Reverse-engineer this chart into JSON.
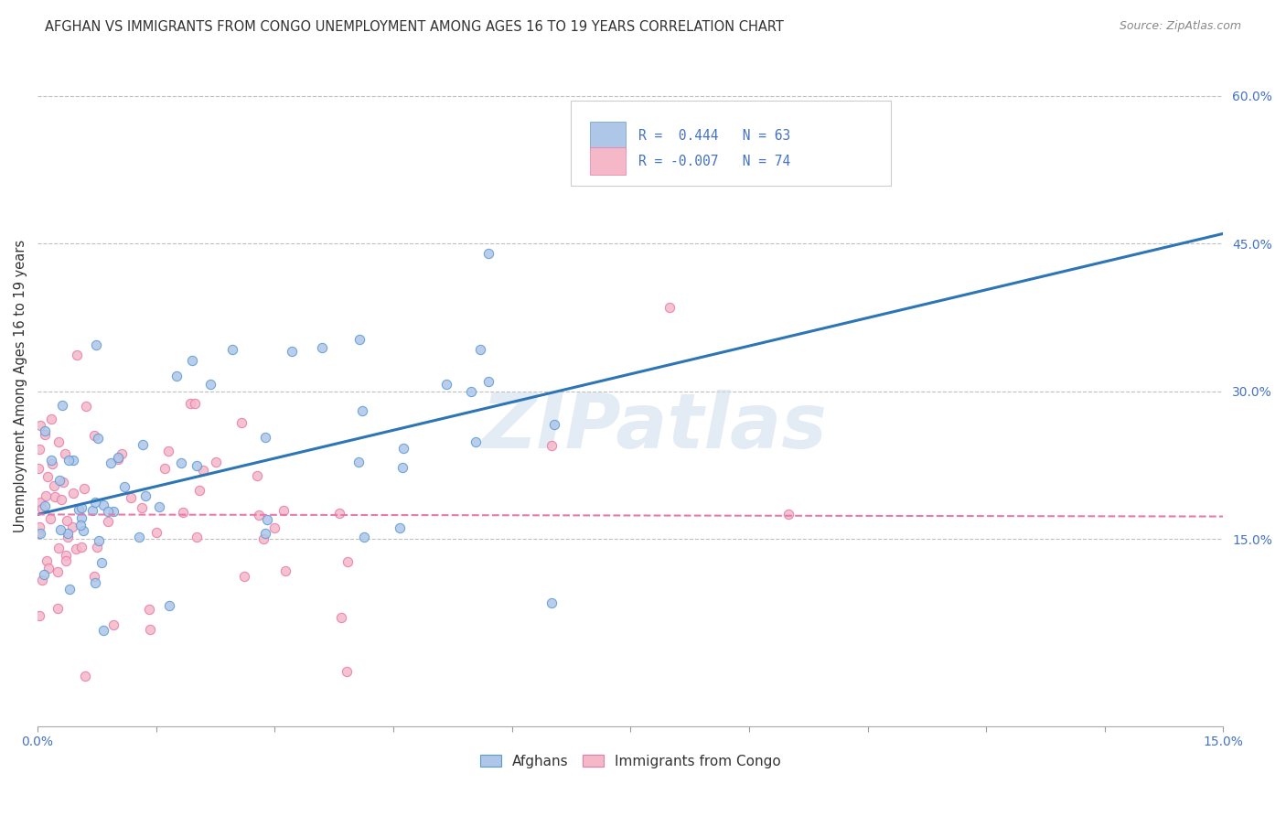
{
  "title": "AFGHAN VS IMMIGRANTS FROM CONGO UNEMPLOYMENT AMONG AGES 16 TO 19 YEARS CORRELATION CHART",
  "source": "Source: ZipAtlas.com",
  "ylabel": "Unemployment Among Ages 16 to 19 years",
  "xlim": [
    0.0,
    0.15
  ],
  "ylim": [
    -0.04,
    0.65
  ],
  "ytick_right_labels": [
    "15.0%",
    "30.0%",
    "45.0%",
    "60.0%"
  ],
  "ytick_right_values": [
    0.15,
    0.3,
    0.45,
    0.6
  ],
  "watermark": "ZIPatlas",
  "afghan_color": "#aec6e8",
  "afghan_edge_color": "#5b9bd5",
  "congo_color": "#f4b8c8",
  "congo_edge_color": "#e87aaa",
  "trend_afghan_color": "#2e75b6",
  "trend_congo_color": "#e87aaa",
  "background_color": "#ffffff",
  "grid_color": "#c0c0c0",
  "trend_af_x0": 0.0,
  "trend_af_y0": 0.175,
  "trend_af_x1": 0.15,
  "trend_af_y1": 0.46,
  "trend_co_y": 0.175,
  "legend_label1": "R =  0.444   N = 63",
  "legend_label2": "R = -0.007   N = 74"
}
